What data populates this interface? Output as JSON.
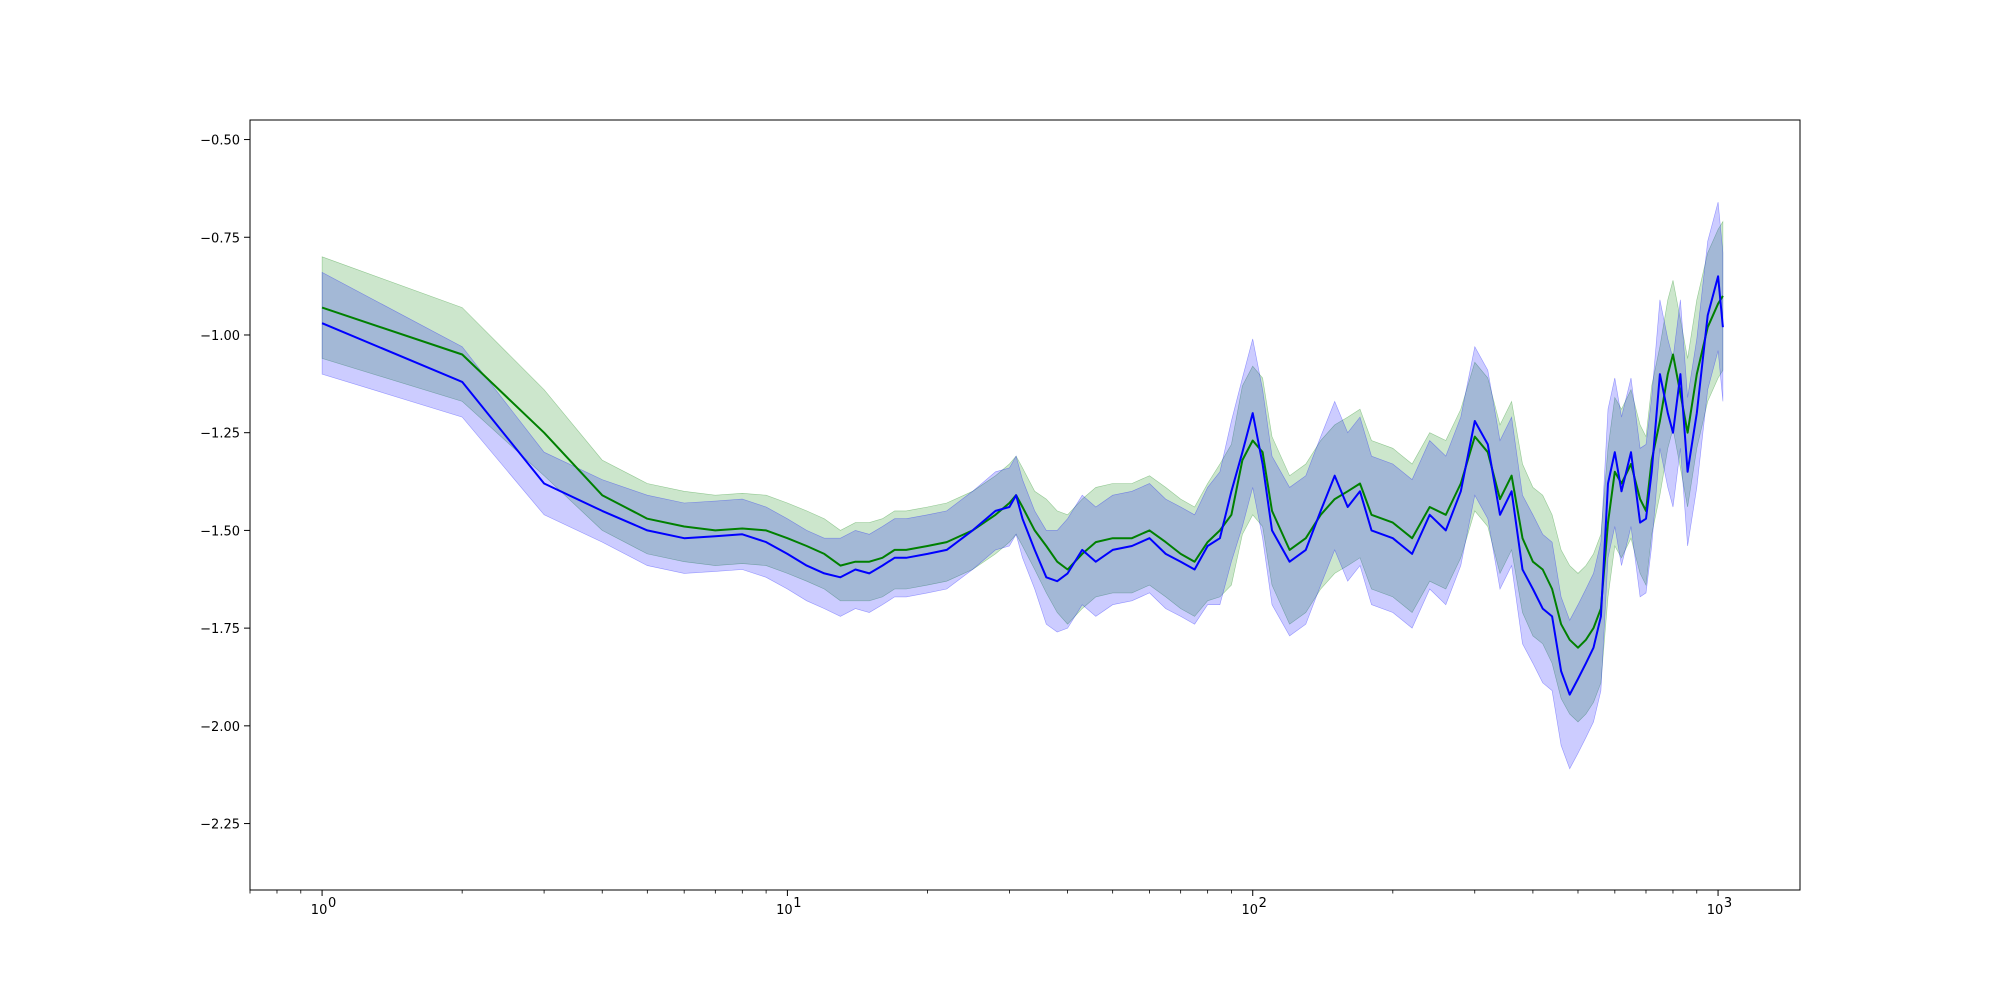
{
  "chart_data": {
    "type": "line",
    "title": "",
    "xlabel": "",
    "ylabel": "",
    "xscale": "log",
    "xlim": [
      0.7,
      1500
    ],
    "ylim": [
      -2.42,
      -0.45
    ],
    "grid": false,
    "legend": "none",
    "x_ticks": [
      {
        "value": 1,
        "base": "10",
        "exp": "0"
      },
      {
        "value": 10,
        "base": "10",
        "exp": "1"
      },
      {
        "value": 100,
        "base": "10",
        "exp": "2"
      },
      {
        "value": 1000,
        "base": "10",
        "exp": "3"
      }
    ],
    "y_ticks": [
      {
        "value": -0.5,
        "label": "−0.50"
      },
      {
        "value": -0.75,
        "label": "−0.75"
      },
      {
        "value": -1.0,
        "label": "−1.00"
      },
      {
        "value": -1.25,
        "label": "−1.25"
      },
      {
        "value": -1.5,
        "label": "−1.50"
      },
      {
        "value": -1.75,
        "label": "−1.75"
      },
      {
        "value": -2.0,
        "label": "−2.00"
      },
      {
        "value": -2.25,
        "label": "−2.25"
      }
    ],
    "series": [
      {
        "color": "#008000",
        "band_color": "#008000",
        "band_opacity": 0.2,
        "x": [
          1,
          2,
          3,
          4,
          5,
          6,
          7,
          8,
          9,
          10,
          11,
          12,
          13,
          14,
          15,
          16,
          17,
          18,
          20,
          22,
          25,
          28,
          30,
          31,
          32,
          34,
          36,
          38,
          40,
          43,
          46,
          50,
          55,
          60,
          65,
          70,
          75,
          80,
          85,
          90,
          95,
          100,
          105,
          110,
          120,
          130,
          140,
          150,
          160,
          170,
          180,
          200,
          220,
          240,
          260,
          280,
          300,
          320,
          340,
          360,
          380,
          400,
          420,
          440,
          460,
          480,
          500,
          520,
          540,
          560,
          580,
          600,
          620,
          650,
          680,
          700,
          720,
          750,
          780,
          800,
          830,
          860,
          900,
          950,
          1000,
          1024
        ],
        "values": [
          -0.93,
          -1.05,
          -1.25,
          -1.41,
          -1.47,
          -1.49,
          -1.5,
          -1.495,
          -1.5,
          -1.52,
          -1.54,
          -1.56,
          -1.59,
          -1.58,
          -1.58,
          -1.57,
          -1.55,
          -1.55,
          -1.54,
          -1.53,
          -1.5,
          -1.46,
          -1.43,
          -1.41,
          -1.44,
          -1.5,
          -1.54,
          -1.58,
          -1.6,
          -1.56,
          -1.53,
          -1.52,
          -1.52,
          -1.5,
          -1.53,
          -1.56,
          -1.58,
          -1.53,
          -1.5,
          -1.46,
          -1.32,
          -1.27,
          -1.3,
          -1.45,
          -1.55,
          -1.52,
          -1.46,
          -1.42,
          -1.4,
          -1.38,
          -1.46,
          -1.48,
          -1.52,
          -1.44,
          -1.46,
          -1.38,
          -1.26,
          -1.3,
          -1.42,
          -1.36,
          -1.52,
          -1.58,
          -1.6,
          -1.65,
          -1.74,
          -1.78,
          -1.8,
          -1.78,
          -1.75,
          -1.7,
          -1.48,
          -1.35,
          -1.38,
          -1.33,
          -1.42,
          -1.45,
          -1.32,
          -1.22,
          -1.1,
          -1.05,
          -1.15,
          -1.25,
          -1.1,
          -0.98,
          -0.92,
          -0.9
        ],
        "band_halfwidth": [
          0.13,
          0.12,
          0.11,
          0.09,
          0.09,
          0.09,
          0.09,
          0.09,
          0.09,
          0.09,
          0.09,
          0.09,
          0.09,
          0.1,
          0.1,
          0.1,
          0.1,
          0.1,
          0.1,
          0.1,
          0.1,
          0.1,
          0.1,
          0.1,
          0.1,
          0.1,
          0.12,
          0.13,
          0.14,
          0.14,
          0.14,
          0.14,
          0.14,
          0.14,
          0.14,
          0.14,
          0.14,
          0.15,
          0.17,
          0.18,
          0.19,
          0.19,
          0.19,
          0.19,
          0.19,
          0.19,
          0.19,
          0.19,
          0.19,
          0.19,
          0.19,
          0.19,
          0.19,
          0.19,
          0.19,
          0.19,
          0.19,
          0.19,
          0.19,
          0.19,
          0.19,
          0.19,
          0.19,
          0.19,
          0.19,
          0.19,
          0.19,
          0.19,
          0.19,
          0.19,
          0.19,
          0.19,
          0.19,
          0.19,
          0.19,
          0.19,
          0.19,
          0.19,
          0.19,
          0.19,
          0.19,
          0.19,
          0.19,
          0.19,
          0.19,
          0.19
        ]
      },
      {
        "color": "#0000ff",
        "band_color": "#0000ff",
        "band_opacity": 0.2,
        "x": [
          1,
          2,
          3,
          4,
          5,
          6,
          7,
          8,
          9,
          10,
          11,
          12,
          13,
          14,
          15,
          16,
          17,
          18,
          20,
          22,
          25,
          28,
          30,
          31,
          32,
          34,
          36,
          38,
          40,
          43,
          46,
          50,
          55,
          60,
          65,
          70,
          75,
          80,
          85,
          90,
          95,
          100,
          105,
          110,
          120,
          130,
          140,
          150,
          160,
          170,
          180,
          200,
          220,
          240,
          260,
          280,
          300,
          320,
          340,
          360,
          380,
          400,
          420,
          440,
          460,
          480,
          500,
          520,
          540,
          560,
          580,
          600,
          620,
          650,
          680,
          700,
          720,
          750,
          780,
          800,
          830,
          860,
          900,
          950,
          1000,
          1024
        ],
        "values": [
          -0.97,
          -1.12,
          -1.38,
          -1.45,
          -1.5,
          -1.52,
          -1.515,
          -1.51,
          -1.53,
          -1.56,
          -1.59,
          -1.61,
          -1.62,
          -1.6,
          -1.61,
          -1.59,
          -1.57,
          -1.57,
          -1.56,
          -1.55,
          -1.5,
          -1.45,
          -1.44,
          -1.41,
          -1.47,
          -1.55,
          -1.62,
          -1.63,
          -1.61,
          -1.55,
          -1.58,
          -1.55,
          -1.54,
          -1.52,
          -1.56,
          -1.58,
          -1.6,
          -1.54,
          -1.52,
          -1.4,
          -1.3,
          -1.2,
          -1.33,
          -1.5,
          -1.58,
          -1.55,
          -1.45,
          -1.36,
          -1.44,
          -1.4,
          -1.5,
          -1.52,
          -1.56,
          -1.46,
          -1.5,
          -1.4,
          -1.22,
          -1.28,
          -1.46,
          -1.4,
          -1.6,
          -1.65,
          -1.7,
          -1.72,
          -1.86,
          -1.92,
          -1.88,
          -1.84,
          -1.8,
          -1.72,
          -1.38,
          -1.3,
          -1.4,
          -1.3,
          -1.48,
          -1.47,
          -1.35,
          -1.1,
          -1.2,
          -1.25,
          -1.1,
          -1.35,
          -1.2,
          -0.95,
          -0.85,
          -0.98
        ],
        "band_halfwidth": [
          0.13,
          0.09,
          0.08,
          0.08,
          0.09,
          0.09,
          0.09,
          0.09,
          0.09,
          0.09,
          0.09,
          0.09,
          0.1,
          0.1,
          0.1,
          0.1,
          0.1,
          0.1,
          0.1,
          0.1,
          0.1,
          0.1,
          0.1,
          0.1,
          0.1,
          0.1,
          0.12,
          0.13,
          0.14,
          0.14,
          0.14,
          0.14,
          0.14,
          0.14,
          0.14,
          0.14,
          0.14,
          0.15,
          0.17,
          0.18,
          0.19,
          0.19,
          0.19,
          0.19,
          0.19,
          0.19,
          0.19,
          0.19,
          0.19,
          0.19,
          0.19,
          0.19,
          0.19,
          0.19,
          0.19,
          0.19,
          0.19,
          0.19,
          0.19,
          0.19,
          0.19,
          0.19,
          0.19,
          0.19,
          0.19,
          0.19,
          0.19,
          0.19,
          0.19,
          0.19,
          0.19,
          0.19,
          0.19,
          0.19,
          0.19,
          0.19,
          0.19,
          0.19,
          0.19,
          0.19,
          0.19,
          0.19,
          0.19,
          0.19,
          0.19,
          0.19
        ]
      }
    ]
  }
}
